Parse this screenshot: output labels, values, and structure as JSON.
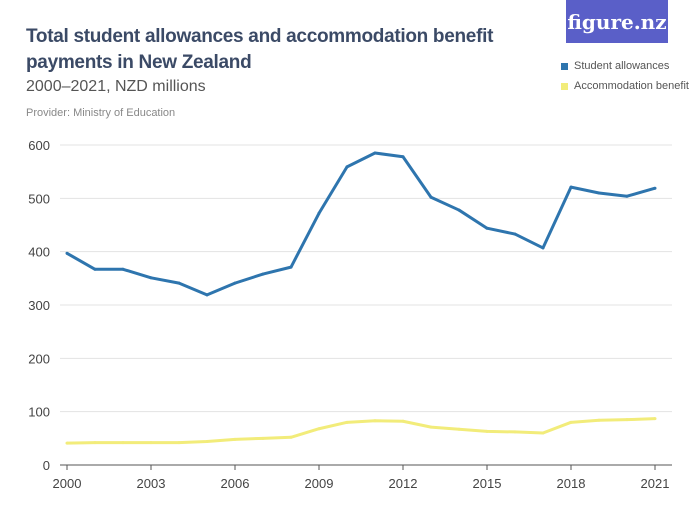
{
  "header": {
    "title": "Total student allowances and accommodation benefit payments in New Zealand",
    "subtitle": "2000–2021, NZD millions",
    "provider": "Provider: Ministry of Education",
    "logo_text": "figure.nz"
  },
  "chart_data": {
    "type": "line",
    "title": "Total student allowances and accommodation benefit payments in New Zealand",
    "subtitle": "2000–2021, NZD millions",
    "x": [
      2000,
      2001,
      2002,
      2003,
      2004,
      2005,
      2006,
      2007,
      2008,
      2009,
      2010,
      2011,
      2012,
      2013,
      2014,
      2015,
      2016,
      2017,
      2018,
      2019,
      2020,
      2021
    ],
    "x_ticks": [
      "2000",
      "2003",
      "2006",
      "2009",
      "2012",
      "2015",
      "2018",
      "2021"
    ],
    "y_ticks": [
      "0",
      "100",
      "200",
      "300",
      "400",
      "500",
      "600"
    ],
    "ylim": [
      0,
      600
    ],
    "xlim": [
      2000,
      2021
    ],
    "grid": true,
    "legend_placement": "top-right",
    "series": [
      {
        "name": "Student allowances",
        "color": "#2e75ae",
        "values": [
          397,
          367,
          367,
          351,
          341,
          319,
          341,
          358,
          371,
          472,
          559,
          585,
          578,
          502,
          478,
          444,
          433,
          407,
          521,
          510,
          504,
          519
        ]
      },
      {
        "name": "Accommodation benefit",
        "color": "#f2ec7a",
        "values": [
          41,
          42,
          42,
          42,
          42,
          44,
          48,
          50,
          52,
          68,
          80,
          83,
          82,
          71,
          67,
          63,
          62,
          60,
          80,
          84,
          85,
          87
        ]
      }
    ]
  }
}
